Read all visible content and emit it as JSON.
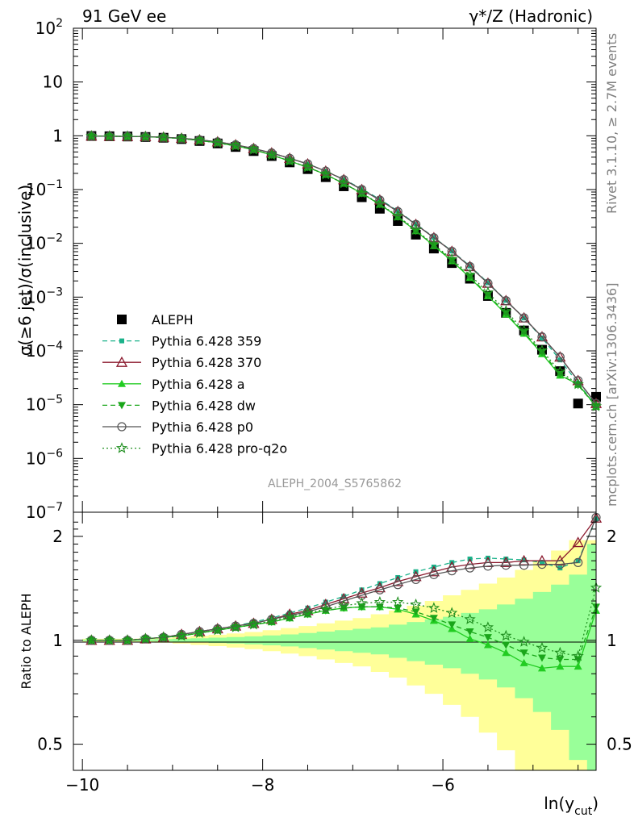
{
  "header": {
    "left_title": "91 GeV ee",
    "right_title": "γ*/Z (Hadronic)",
    "side_text_top": "Rivet 3.1.10, ≥ 2.7M events",
    "side_text_bottom": "mcplots.cern.ch [arXiv:1306.3436]",
    "watermark": "ALEPH_2004_S5765862"
  },
  "colors": {
    "aleph": "#000000",
    "p359": "#1bb28a",
    "p370": "#8b1a2e",
    "pa": "#22cc22",
    "pdw": "#1aa61a",
    "pp0": "#555555",
    "pq2o": "#1f8f1f",
    "band_inner": "#99ff99",
    "band_outer": "#ffff99"
  },
  "chart_data": [
    {
      "type": "scatter",
      "panel": "main",
      "ylabel": "σ(≥6 jet)/σ(inclusive)",
      "xlim": [
        -10.1,
        -4.3
      ],
      "ylim": [
        1e-07,
        100
      ],
      "yscale": "log",
      "ytick_labels": [
        "10^-7",
        "10^-6",
        "10^-5",
        "10^-4",
        "10^-3",
        "10^-2",
        "10^-1",
        "1",
        "10",
        "10^2"
      ],
      "legend_position": "lower-left",
      "x": [
        -9.9,
        -9.7,
        -9.5,
        -9.3,
        -9.1,
        -8.9,
        -8.7,
        -8.5,
        -8.3,
        -8.1,
        -7.9,
        -7.7,
        -7.5,
        -7.3,
        -7.1,
        -6.9,
        -6.7,
        -6.5,
        -6.3,
        -6.1,
        -5.9,
        -5.7,
        -5.5,
        -5.3,
        -5.1,
        -4.9,
        -4.7,
        -4.5,
        -4.3
      ],
      "series": [
        {
          "name": "ALEPH",
          "style": "aleph",
          "values": [
            0.99,
            0.98,
            0.97,
            0.95,
            0.92,
            0.87,
            0.8,
            0.72,
            0.62,
            0.52,
            0.42,
            0.32,
            0.24,
            0.17,
            0.115,
            0.072,
            0.044,
            0.026,
            0.0145,
            0.008,
            0.0043,
            0.0022,
            0.00105,
            0.00051,
            0.00024,
            0.000105,
            4.2e-05,
            1.05e-05,
            1.4e-05
          ]
        },
        {
          "name": "Pythia 6.428 359",
          "style": "p359",
          "values": [
            0.99,
            0.98,
            0.975,
            0.965,
            0.94,
            0.9,
            0.84,
            0.77,
            0.68,
            0.58,
            0.48,
            0.38,
            0.3,
            0.22,
            0.155,
            0.103,
            0.066,
            0.04,
            0.023,
            0.0129,
            0.0072,
            0.0038,
            0.00185,
            0.00087,
            0.00041,
            0.000174,
            6.8e-05,
            2.5e-05,
            9.5e-06
          ]
        },
        {
          "name": "Pythia 6.428 370",
          "style": "p370",
          "values": [
            0.99,
            0.98,
            0.975,
            0.965,
            0.94,
            0.9,
            0.84,
            0.77,
            0.68,
            0.58,
            0.48,
            0.38,
            0.3,
            0.22,
            0.153,
            0.1,
            0.064,
            0.039,
            0.0225,
            0.0127,
            0.0071,
            0.0037,
            0.00181,
            0.00086,
            0.00041,
            0.000182,
            7.7e-05,
            2.8e-05,
            1.05e-05
          ]
        },
        {
          "name": "Pythia 6.428 a",
          "style": "pa",
          "values": [
            0.99,
            0.98,
            0.975,
            0.96,
            0.93,
            0.89,
            0.82,
            0.74,
            0.65,
            0.55,
            0.44,
            0.34,
            0.26,
            0.19,
            0.13,
            0.085,
            0.053,
            0.031,
            0.017,
            0.009,
            0.0047,
            0.0023,
            0.00105,
            0.00048,
            0.00021,
            8.8e-05,
            3.5e-05,
            2.4e-05,
            9.3e-06
          ]
        },
        {
          "name": "Pythia 6.428 dw",
          "style": "pdw",
          "values": [
            0.99,
            0.98,
            0.975,
            0.96,
            0.93,
            0.89,
            0.82,
            0.74,
            0.65,
            0.55,
            0.44,
            0.34,
            0.26,
            0.19,
            0.13,
            0.085,
            0.053,
            0.031,
            0.017,
            0.0092,
            0.0048,
            0.0024,
            0.0011,
            0.0005,
            0.00022,
            9.4e-05,
            3.7e-05,
            2.3e-05,
            9.3e-06
          ]
        },
        {
          "name": "Pythia 6.428 p0",
          "style": "pp0",
          "values": [
            0.99,
            0.98,
            0.975,
            0.965,
            0.94,
            0.9,
            0.84,
            0.77,
            0.68,
            0.58,
            0.48,
            0.38,
            0.3,
            0.22,
            0.153,
            0.1,
            0.064,
            0.039,
            0.0225,
            0.0127,
            0.0071,
            0.0037,
            0.00181,
            0.00086,
            0.00041,
            0.000182,
            7.7e-05,
            2.8e-05,
            1.05e-05
          ]
        },
        {
          "name": "Pythia 6.428 pro-q2o",
          "style": "pq2o",
          "values": [
            0.99,
            0.98,
            0.975,
            0.96,
            0.93,
            0.89,
            0.82,
            0.74,
            0.65,
            0.55,
            0.44,
            0.34,
            0.26,
            0.19,
            0.13,
            0.086,
            0.054,
            0.032,
            0.0178,
            0.0095,
            0.0051,
            0.0026,
            0.00122,
            0.00055,
            0.00024,
            0.000102,
            4.1e-05,
            2.4e-05,
            9.3e-06
          ]
        }
      ]
    },
    {
      "type": "line",
      "panel": "ratio",
      "ylabel": "Ratio to ALEPH",
      "xlabel": "ln(y_cut)",
      "xlabel_main": "ln(y",
      "xlabel_sub": "cut",
      "xlabel_close": ")",
      "xlim": [
        -10.1,
        -4.3
      ],
      "ylim": [
        0.42,
        2.35
      ],
      "yscale": "log",
      "x_ticks": [
        -10,
        -8,
        -6
      ],
      "x_tick_labels": [
        "−10",
        "−8",
        "−6"
      ],
      "y_ticks": [
        0.5,
        1,
        2
      ],
      "y_tick_labels": [
        "0.5",
        "1",
        "2"
      ],
      "x": [
        -9.9,
        -9.7,
        -9.5,
        -9.3,
        -9.1,
        -8.9,
        -8.7,
        -8.5,
        -8.3,
        -8.1,
        -7.9,
        -7.7,
        -7.5,
        -7.3,
        -7.1,
        -6.9,
        -6.7,
        -6.5,
        -6.3,
        -6.1,
        -5.9,
        -5.7,
        -5.5,
        -5.3,
        -5.1,
        -4.9,
        -4.7,
        -4.5,
        -4.3
      ],
      "band_edges": [
        -10.0,
        -9.8,
        -9.6,
        -9.4,
        -9.2,
        -9.0,
        -8.8,
        -8.6,
        -8.4,
        -8.2,
        -8.0,
        -7.8,
        -7.6,
        -7.4,
        -7.2,
        -7.0,
        -6.8,
        -6.6,
        -6.4,
        -6.2,
        -6.0,
        -5.8,
        -5.6,
        -5.4,
        -5.2,
        -5.0,
        -4.8,
        -4.6,
        -4.4,
        -4.2
      ],
      "band_inner": [
        0.005,
        0.005,
        0.005,
        0.006,
        0.008,
        0.011,
        0.014,
        0.018,
        0.022,
        0.027,
        0.033,
        0.04,
        0.05,
        0.06,
        0.07,
        0.08,
        0.09,
        0.11,
        0.13,
        0.15,
        0.17,
        0.2,
        0.23,
        0.27,
        0.32,
        0.38,
        0.45,
        0.55,
        0.9,
        0.9
      ],
      "band_outer": [
        0.01,
        0.01,
        0.01,
        0.012,
        0.016,
        0.022,
        0.03,
        0.038,
        0.047,
        0.057,
        0.07,
        0.085,
        0.1,
        0.12,
        0.14,
        0.16,
        0.19,
        0.22,
        0.26,
        0.3,
        0.35,
        0.4,
        0.46,
        0.52,
        0.6,
        0.7,
        0.82,
        0.95,
        0.95,
        0.95
      ],
      "series": [
        {
          "name": "Pythia 6.428 359",
          "style": "p359",
          "values": [
            1.0,
            1.0,
            1.0,
            1.01,
            1.02,
            1.04,
            1.06,
            1.08,
            1.1,
            1.13,
            1.16,
            1.2,
            1.24,
            1.29,
            1.34,
            1.4,
            1.46,
            1.52,
            1.58,
            1.63,
            1.68,
            1.72,
            1.73,
            1.72,
            1.71,
            1.68,
            1.62,
            1.7,
            2.25
          ]
        },
        {
          "name": "Pythia 6.428 370",
          "style": "p370",
          "values": [
            1.0,
            1.0,
            1.0,
            1.01,
            1.02,
            1.04,
            1.06,
            1.08,
            1.1,
            1.12,
            1.15,
            1.19,
            1.22,
            1.27,
            1.32,
            1.37,
            1.42,
            1.48,
            1.53,
            1.58,
            1.63,
            1.66,
            1.68,
            1.68,
            1.7,
            1.7,
            1.7,
            1.92,
            2.26
          ]
        },
        {
          "name": "Pythia 6.428 a",
          "style": "pa",
          "values": [
            1.0,
            1.0,
            1.0,
            1.01,
            1.02,
            1.03,
            1.05,
            1.07,
            1.09,
            1.11,
            1.13,
            1.16,
            1.19,
            1.22,
            1.24,
            1.25,
            1.25,
            1.23,
            1.19,
            1.14,
            1.08,
            1.01,
            0.97,
            0.92,
            0.86,
            0.83,
            0.84,
            0.84,
            1.22
          ]
        },
        {
          "name": "Pythia 6.428 dw",
          "style": "pdw",
          "values": [
            1.0,
            1.0,
            1.0,
            1.01,
            1.02,
            1.03,
            1.05,
            1.07,
            1.09,
            1.11,
            1.13,
            1.16,
            1.19,
            1.22,
            1.24,
            1.25,
            1.25,
            1.24,
            1.21,
            1.16,
            1.11,
            1.06,
            1.02,
            0.97,
            0.92,
            0.89,
            0.88,
            0.88,
            1.25
          ]
        },
        {
          "name": "Pythia 6.428 p0",
          "style": "pp0",
          "values": [
            1.0,
            1.0,
            1.0,
            1.01,
            1.02,
            1.04,
            1.06,
            1.08,
            1.1,
            1.12,
            1.15,
            1.18,
            1.21,
            1.25,
            1.3,
            1.35,
            1.4,
            1.45,
            1.5,
            1.55,
            1.59,
            1.62,
            1.64,
            1.65,
            1.65,
            1.66,
            1.66,
            1.68,
            2.27
          ]
        },
        {
          "name": "Pythia 6.428 pro-q2o",
          "style": "pq2o",
          "values": [
            1.0,
            1.0,
            1.0,
            1.01,
            1.02,
            1.03,
            1.05,
            1.07,
            1.09,
            1.11,
            1.14,
            1.17,
            1.2,
            1.23,
            1.26,
            1.28,
            1.29,
            1.29,
            1.27,
            1.24,
            1.2,
            1.15,
            1.09,
            1.03,
            0.99,
            0.95,
            0.92,
            0.9,
            1.42
          ]
        }
      ]
    }
  ]
}
